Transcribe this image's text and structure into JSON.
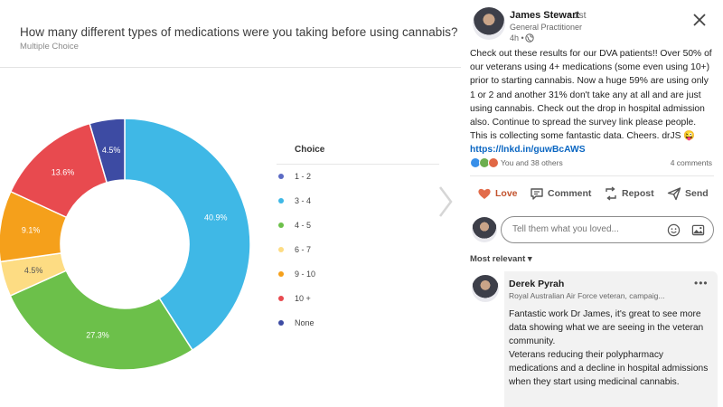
{
  "survey": {
    "question": "How many different types of medications were you taking before using cannabis?",
    "question_type": "Multiple Choice",
    "legend_header": "Choice"
  },
  "chart_data": {
    "type": "pie",
    "title": "",
    "categories": [
      "1 - 2",
      "3 - 4",
      "4 - 5",
      "6 - 7",
      "9 - 10",
      "10 +",
      "None"
    ],
    "series": [
      {
        "values": [
          0,
          40.9,
          27.3,
          4.5,
          9.1,
          13.6,
          4.5
        ]
      }
    ],
    "labels": [
      "",
      "40.9%",
      "27.3%",
      "4.5%",
      "9.1%",
      "13.6%",
      "4.5%"
    ],
    "colors": [
      "#5b6ac4",
      "#3fb8e6",
      "#6cc04a",
      "#fddc83",
      "#f5a01b",
      "#e84a4f",
      "#3d4ba3"
    ],
    "donut": true,
    "legend_position": "right"
  },
  "post": {
    "author_name": "James Stewart",
    "author_degree": "• 1st",
    "author_title": "General Practitioner",
    "time": "4h •",
    "text_body": "Check out these results for our DVA patients!! Over 50% of our veterans using 4+ medications (some even using 10+) prior to starting cannabis. Now a huge 59% are using only 1 or 2 and another 31% don't take any at all and are just using cannabis. Check out the drop in hospital admission also. Continue to spread the survey link please people. This is collecting some fantastic data. Cheers. drJS 😜 ",
    "link": "https://lnkd.in/guwBcAWS",
    "reactions": "You and 38 others",
    "comments_count": "4 comments",
    "actions": {
      "love": "Love",
      "comment": "Comment",
      "repost": "Repost",
      "send": "Send"
    },
    "comment_placeholder": "Tell them what you loved...",
    "sort_label": "Most relevant",
    "sort_caret": "▾"
  },
  "comment": {
    "name": "Derek Pyrah",
    "headline": "Royal Australian Air Force veteran, campaig...",
    "more": "•••",
    "text": "Fantastic work Dr James, it's great to see more data showing what we are seeing in the veteran community.\nVeterans reducing their polypharmacy medications and a decline in hospital admissions when they start using medicinal cannabis."
  },
  "icons": [
    "globe-icon",
    "close-icon",
    "heart-icon",
    "comment-icon",
    "repost-icon",
    "send-icon",
    "emoji-icon",
    "image-icon",
    "chevron-right-icon"
  ]
}
